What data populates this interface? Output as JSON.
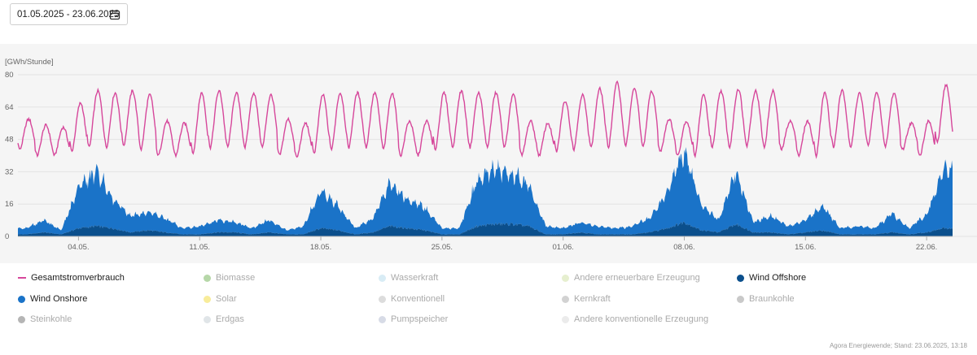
{
  "date_range": {
    "value": "01.05.2025 - 23.06.2025",
    "icon": "calendar-icon"
  },
  "credit": "Agora Energiewende; Stand: 23.06.2025, 13:18",
  "chart_data": {
    "type": "area",
    "ylabel": "[GWh/Stunde]",
    "ylim": [
      0,
      80
    ],
    "yticks": [
      0,
      16,
      32,
      48,
      64,
      80
    ],
    "grid": true,
    "x_range": [
      "01.05.2025",
      "23.06.2025"
    ],
    "xticks": [
      "04.05.",
      "11.05.",
      "18.05.",
      "25.05.",
      "01.06.",
      "08.06.",
      "15.06.",
      "22.06."
    ],
    "xtick_days": [
      3,
      10,
      17,
      24,
      31,
      38,
      45,
      52
    ],
    "x_days": [
      0,
      1,
      2,
      3,
      4,
      5,
      6,
      7,
      8,
      9,
      10,
      11,
      12,
      13,
      14,
      15,
      16,
      17,
      18,
      19,
      20,
      21,
      22,
      23,
      24,
      25,
      26,
      27,
      28,
      29,
      30,
      31,
      32,
      33,
      34,
      35,
      36,
      37,
      38,
      39,
      40,
      41,
      42,
      43,
      44,
      45,
      46,
      47,
      48,
      49,
      50,
      51,
      52,
      53
    ],
    "series": [
      {
        "name": "Gesamtstromverbrauch",
        "kind": "line",
        "color": "#d6479b",
        "daily_min": [
          43,
          40,
          40,
          42,
          44,
          44,
          45,
          43,
          40,
          40,
          41,
          44,
          44,
          44,
          44,
          40,
          39,
          41,
          43,
          44,
          44,
          43,
          40,
          40,
          43,
          44,
          44,
          44,
          44,
          40,
          40,
          42,
          43,
          44,
          44,
          45,
          44,
          42,
          40,
          40,
          44,
          44,
          45,
          44,
          43,
          40,
          40,
          44,
          44,
          45,
          44,
          43,
          40,
          46
        ],
        "daily_max": [
          58,
          55,
          54,
          66,
          72,
          71,
          72,
          70,
          57,
          56,
          71,
          72,
          71,
          71,
          70,
          58,
          56,
          70,
          71,
          71,
          71,
          71,
          57,
          57,
          71,
          72,
          71,
          71,
          70,
          57,
          56,
          67,
          70,
          73,
          76,
          73,
          72,
          58,
          57,
          70,
          72,
          73,
          72,
          72,
          57,
          57,
          71,
          72,
          71,
          71,
          71,
          56,
          57,
          75
        ]
      },
      {
        "name": "Wind Onshore",
        "kind": "area",
        "color": "#1a73c8",
        "daily": [
          3,
          6,
          2,
          20,
          27,
          15,
          8,
          9,
          7,
          3,
          4,
          6,
          5,
          3,
          6,
          2,
          4,
          18,
          12,
          3,
          7,
          21,
          14,
          11,
          3,
          3,
          22,
          27,
          25,
          20,
          4,
          3,
          5,
          4,
          3,
          4,
          7,
          18,
          36,
          12,
          6,
          26,
          5,
          8,
          4,
          6,
          12,
          3,
          4,
          3,
          9,
          3,
          9,
          29
        ]
      },
      {
        "name": "Wind Offshore",
        "kind": "area",
        "color": "#0b4f8c",
        "daily": [
          1,
          2,
          1,
          4,
          5,
          4,
          2,
          3,
          2,
          1,
          1,
          2,
          2,
          1,
          2,
          1,
          1,
          4,
          3,
          1,
          2,
          5,
          4,
          3,
          1,
          1,
          5,
          6,
          6,
          5,
          1,
          1,
          2,
          1,
          1,
          1,
          2,
          4,
          7,
          3,
          2,
          6,
          2,
          2,
          1,
          2,
          3,
          1,
          1,
          1,
          2,
          1,
          2,
          4
        ]
      }
    ]
  },
  "legend": {
    "items": [
      {
        "label": "Gesamtstromverbrauch",
        "color": "#d6479b",
        "active": true,
        "marker": "line"
      },
      {
        "label": "Biomasse",
        "color": "#b6d7a8",
        "active": false,
        "marker": "dot"
      },
      {
        "label": "Wasserkraft",
        "color": "#d8ecf5",
        "active": false,
        "marker": "dot"
      },
      {
        "label": "Andere erneuerbare Erzeugung",
        "color": "#e6efcf",
        "active": false,
        "marker": "dot"
      },
      {
        "label": "Wind Offshore",
        "color": "#0b4f8c",
        "active": true,
        "marker": "dot"
      },
      {
        "label": "Wind Onshore",
        "color": "#1a73c8",
        "active": true,
        "marker": "dot"
      },
      {
        "label": "Solar",
        "color": "#f8ec9a",
        "active": false,
        "marker": "dot"
      },
      {
        "label": "Konventionell",
        "color": "#dcdcdc",
        "active": false,
        "marker": "dot"
      },
      {
        "label": "Kernkraft",
        "color": "#d2d2d2",
        "active": false,
        "marker": "dot"
      },
      {
        "label": "Braunkohle",
        "color": "#c9c9c9",
        "active": false,
        "marker": "dot"
      },
      {
        "label": "Steinkohle",
        "color": "#b5b5b5",
        "active": false,
        "marker": "dot"
      },
      {
        "label": "Erdgas",
        "color": "#e0e5e8",
        "active": false,
        "marker": "dot"
      },
      {
        "label": "Pumpspeicher",
        "color": "#d7dbe6",
        "active": false,
        "marker": "dot"
      },
      {
        "label": "Andere konventionelle Erzeugung",
        "color": "#ebebeb",
        "active": false,
        "marker": "dot"
      }
    ]
  }
}
